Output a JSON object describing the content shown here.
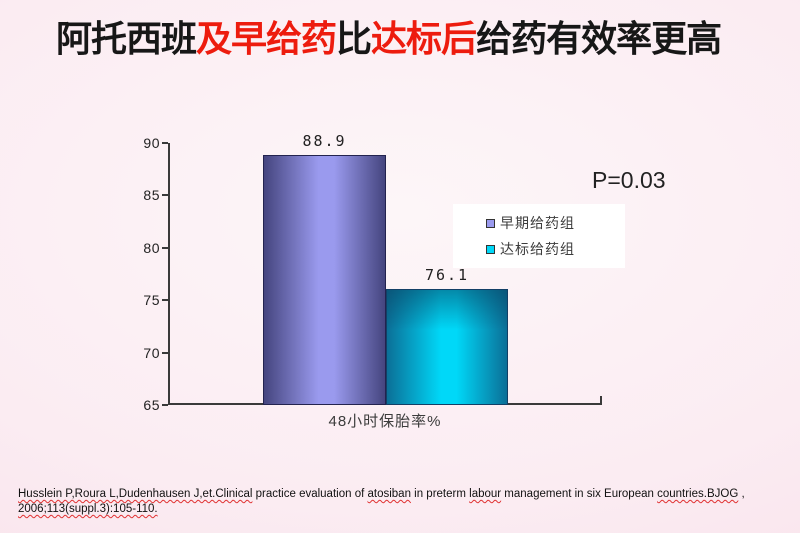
{
  "slide_title": {
    "segments": [
      {
        "text": "阿托西班",
        "color": "#171717"
      },
      {
        "text": "及早给药",
        "color": "#ed1c0e"
      },
      {
        "text": "比",
        "color": "#171717"
      },
      {
        "text": "达标后",
        "color": "#ed1c0e"
      },
      {
        "text": "给药有效率更高",
        "color": "#171717"
      }
    ]
  },
  "chart_data": {
    "type": "bar",
    "categories": [
      "48小时保胎率%"
    ],
    "series": [
      {
        "name": "早期给药组",
        "values": [
          88.9
        ],
        "data_label": "88.9",
        "color": "#9a9aee",
        "color_edge": "#45457f",
        "border_color": "#23234f"
      },
      {
        "name": "达标给药组",
        "values": [
          76.1
        ],
        "data_label": "76.1",
        "color": "#00d8f8",
        "color_edge": "#0b6f97",
        "border_color": "#123f66"
      }
    ],
    "title": "",
    "xlabel": "48小时保胎率%",
    "ylabel": "",
    "ylim": [
      65,
      90
    ],
    "yticks": [
      90,
      85,
      80,
      75,
      70,
      65
    ],
    "grid": false,
    "legend_position": "right",
    "annotation": "P=0.03"
  },
  "annotation": {
    "p_value": "P=0.03"
  },
  "citation": {
    "lines": [
      [
        {
          "text": "Husslein P,Roura L,Dudenhausen J,et.Clinical",
          "misspell": true
        },
        {
          "text": " practice evaluation of ",
          "misspell": false
        },
        {
          "text": "atosiban",
          "misspell": true
        },
        {
          "text": " in preterm ",
          "misspell": false
        },
        {
          "text": "labour",
          "misspell": true
        },
        {
          "text": " management in six European ",
          "misspell": false
        },
        {
          "text": "countries.BJOG",
          "misspell": true
        },
        {
          "text": " ,",
          "misspell": false
        }
      ],
      [
        {
          "text": "2006;113(suppl.3):105-110.",
          "misspell": true
        }
      ]
    ]
  },
  "colors": {
    "background_center": "#fdf6f8",
    "background_edge": "#f7dfe9",
    "axis": "#3a3a3a",
    "legend_background": "#ffffff",
    "body_text": "#3c3c3c",
    "title_red": "#ed1c0e",
    "title_black": "#171717"
  }
}
